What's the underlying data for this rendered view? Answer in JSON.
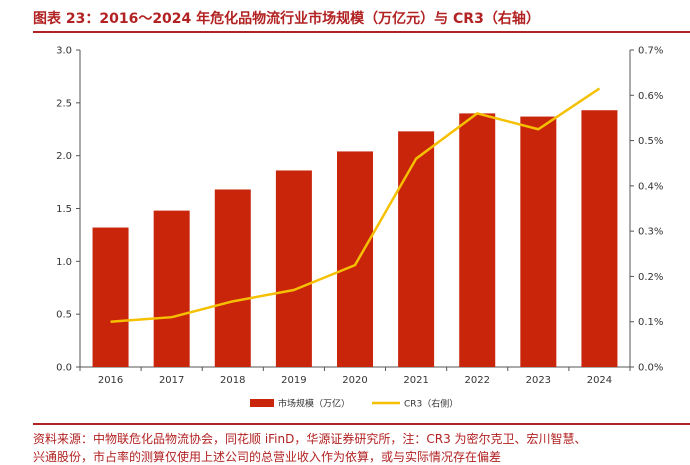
{
  "figure": {
    "title": "图表 23：2016～2024 年危化品物流行业市场规模（万亿元）与 CR3（右轴）",
    "source_note": "资料来源：中物联危化品物流协会，同花顺 iFinD，华源证券研究所，注：CR3 为密尔克卫、宏川智慧、",
    "source_note_line2": "兴通股份，市占率的测算仅使用上述公司的总营业收入作为依算，或与实际情况存在偏差"
  },
  "colors": {
    "bar": "#c8250b",
    "line": "#f5c000",
    "title": "#b22222",
    "axis_text": "#333333"
  },
  "chart_data": {
    "type": "bar",
    "categories": [
      "2016",
      "2017",
      "2018",
      "2019",
      "2020",
      "2021",
      "2022",
      "2023",
      "2024"
    ],
    "series": [
      {
        "name": "市场规模（万亿）",
        "type": "bar",
        "axis": "left",
        "values": [
          1.32,
          1.48,
          1.68,
          1.86,
          2.04,
          2.23,
          2.4,
          2.37,
          2.43
        ]
      },
      {
        "name": "CR3（右侧）",
        "type": "line",
        "axis": "right",
        "values": [
          0.1,
          0.11,
          0.145,
          0.17,
          0.225,
          0.46,
          0.56,
          0.525,
          0.615
        ]
      }
    ],
    "y_left": {
      "min": 0,
      "max": 3.0,
      "ticks": [
        "0.0",
        "0.5",
        "1.0",
        "1.5",
        "2.0",
        "2.5",
        "3.0"
      ]
    },
    "y_right": {
      "min": 0,
      "max": 0.7,
      "ticks": [
        "0.0%",
        "0.1%",
        "0.2%",
        "0.3%",
        "0.4%",
        "0.5%",
        "0.6%",
        "0.7%"
      ]
    },
    "legend_position": "bottom",
    "grid": false
  }
}
